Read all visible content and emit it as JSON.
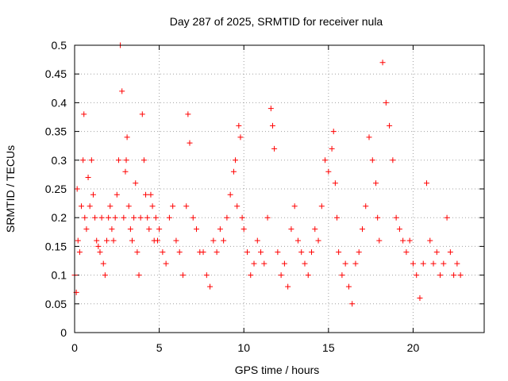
{
  "chart_data": {
    "type": "scatter",
    "title": "Day 287 of 2025, SRMTID for receiver nula",
    "xlabel": "GPS time / hours",
    "ylabel": "SRMTID / TECUs",
    "xlim": [
      0,
      24.2
    ],
    "ylim": [
      0,
      0.5
    ],
    "xticks": [
      0,
      5,
      10,
      15,
      20
    ],
    "xtick_labels": [
      "0",
      "5",
      "10",
      "15",
      "20"
    ],
    "yticks": [
      0,
      0.05,
      0.1,
      0.15,
      0.2,
      0.25,
      0.3,
      0.35,
      0.4,
      0.45,
      0.5
    ],
    "ytick_labels": [
      "0",
      "0.05",
      "0.1",
      "0.15",
      "0.2",
      "0.25",
      "0.3",
      "0.35",
      "0.4",
      "0.45",
      "0.5"
    ],
    "grid": true,
    "marker": "+",
    "color": "#ff0000",
    "series": [
      {
        "name": "SRMTID",
        "x": [
          0.0,
          0.1,
          0.15,
          0.2,
          0.3,
          0.4,
          0.5,
          0.55,
          0.6,
          0.7,
          0.8,
          0.9,
          1.0,
          1.1,
          1.2,
          1.3,
          1.4,
          1.5,
          1.6,
          1.7,
          1.8,
          1.9,
          2.0,
          2.1,
          2.2,
          2.3,
          2.4,
          2.5,
          2.6,
          2.7,
          2.8,
          2.9,
          3.0,
          3.05,
          3.1,
          3.2,
          3.3,
          3.4,
          3.5,
          3.6,
          3.7,
          3.8,
          3.9,
          4.0,
          4.1,
          4.2,
          4.3,
          4.4,
          4.5,
          4.6,
          4.7,
          4.8,
          4.9,
          5.0,
          5.2,
          5.4,
          5.6,
          5.8,
          6.0,
          6.2,
          6.4,
          6.6,
          6.7,
          6.8,
          7.0,
          7.2,
          7.4,
          7.6,
          7.8,
          8.0,
          8.2,
          8.4,
          8.6,
          8.8,
          9.0,
          9.2,
          9.4,
          9.5,
          9.6,
          9.7,
          9.8,
          9.9,
          10.0,
          10.2,
          10.4,
          10.6,
          10.8,
          11.0,
          11.2,
          11.4,
          11.6,
          11.7,
          11.8,
          12.0,
          12.2,
          12.4,
          12.6,
          12.8,
          13.0,
          13.2,
          13.4,
          13.6,
          13.8,
          14.0,
          14.2,
          14.4,
          14.6,
          14.8,
          15.0,
          15.2,
          15.3,
          15.4,
          15.5,
          15.6,
          15.8,
          16.0,
          16.2,
          16.4,
          16.6,
          16.8,
          17.0,
          17.2,
          17.4,
          17.6,
          17.8,
          17.9,
          18.0,
          18.2,
          18.4,
          18.6,
          18.8,
          19.0,
          19.2,
          19.4,
          19.6,
          19.8,
          20.0,
          20.2,
          20.4,
          20.6,
          20.8,
          21.0,
          21.2,
          21.4,
          21.6,
          21.8,
          22.0,
          22.2,
          22.4,
          22.6,
          22.8
        ],
        "y": [
          0.1,
          0.07,
          0.25,
          0.16,
          0.14,
          0.22,
          0.3,
          0.38,
          0.2,
          0.18,
          0.27,
          0.22,
          0.3,
          0.24,
          0.2,
          0.16,
          0.15,
          0.14,
          0.2,
          0.12,
          0.1,
          0.16,
          0.2,
          0.22,
          0.18,
          0.16,
          0.2,
          0.24,
          0.3,
          0.5,
          0.42,
          0.2,
          0.28,
          0.3,
          0.34,
          0.22,
          0.18,
          0.16,
          0.2,
          0.26,
          0.14,
          0.1,
          0.2,
          0.38,
          0.3,
          0.24,
          0.2,
          0.18,
          0.24,
          0.22,
          0.16,
          0.2,
          0.16,
          0.18,
          0.14,
          0.12,
          0.2,
          0.22,
          0.16,
          0.14,
          0.1,
          0.22,
          0.38,
          0.33,
          0.2,
          0.18,
          0.14,
          0.14,
          0.1,
          0.08,
          0.16,
          0.14,
          0.18,
          0.16,
          0.2,
          0.24,
          0.28,
          0.3,
          0.22,
          0.36,
          0.34,
          0.2,
          0.18,
          0.14,
          0.1,
          0.12,
          0.16,
          0.14,
          0.12,
          0.2,
          0.39,
          0.36,
          0.32,
          0.14,
          0.1,
          0.12,
          0.08,
          0.18,
          0.22,
          0.16,
          0.14,
          0.12,
          0.1,
          0.14,
          0.18,
          0.16,
          0.22,
          0.3,
          0.28,
          0.32,
          0.35,
          0.26,
          0.2,
          0.14,
          0.1,
          0.12,
          0.08,
          0.05,
          0.12,
          0.14,
          0.18,
          0.22,
          0.34,
          0.3,
          0.26,
          0.2,
          0.16,
          0.47,
          0.4,
          0.36,
          0.3,
          0.2,
          0.18,
          0.16,
          0.14,
          0.16,
          0.12,
          0.1,
          0.06,
          0.12,
          0.26,
          0.16,
          0.12,
          0.14,
          0.1,
          0.12,
          0.2,
          0.14,
          0.1,
          0.12,
          0.1
        ]
      }
    ]
  }
}
